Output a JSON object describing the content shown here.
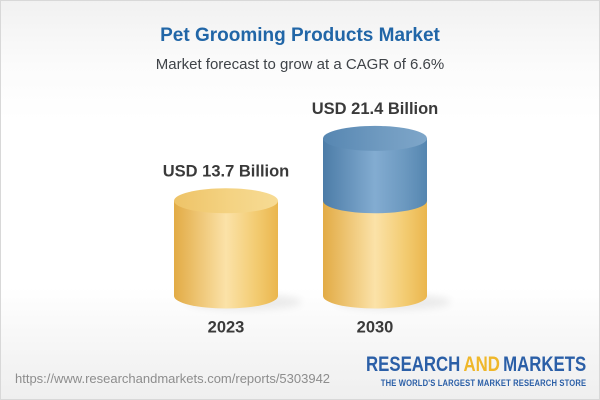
{
  "header": {
    "title": "Pet Grooming Products Market",
    "subtitle": "Market forecast to grow at a CAGR of 6.6%",
    "title_color": "#2166a7"
  },
  "chart_data": {
    "type": "bar",
    "title": "Pet Grooming Products Market",
    "subtitle": "Market forecast to grow at a CAGR of 6.6%",
    "categories": [
      "2023",
      "2030"
    ],
    "values": [
      13.7,
      21.4
    ],
    "unit": "USD Billion",
    "bar_labels": [
      "USD 13.7 Billion",
      "USD 21.4 Billion"
    ],
    "cagr_percent": 6.6,
    "series": [
      {
        "name": "base-market-size",
        "values": [
          13.7,
          13.7
        ],
        "color": "#F2C463"
      },
      {
        "name": "growth-to-2030",
        "values": [
          0,
          7.7
        ],
        "color": "#5E8DB8"
      }
    ],
    "legend_position": "none",
    "grid": false,
    "bar_style": "3d-cylinder"
  },
  "footer": {
    "url": "https://www.researchandmarkets.com/reports/5303942",
    "logo": {
      "part1": "RESEARCH",
      "part2": "AND",
      "part3": "MARKETS",
      "tagline": "THE WORLD'S LARGEST MARKET RESEARCH STORE",
      "blue": "#2b5fa7",
      "gold": "#efb72a"
    }
  }
}
